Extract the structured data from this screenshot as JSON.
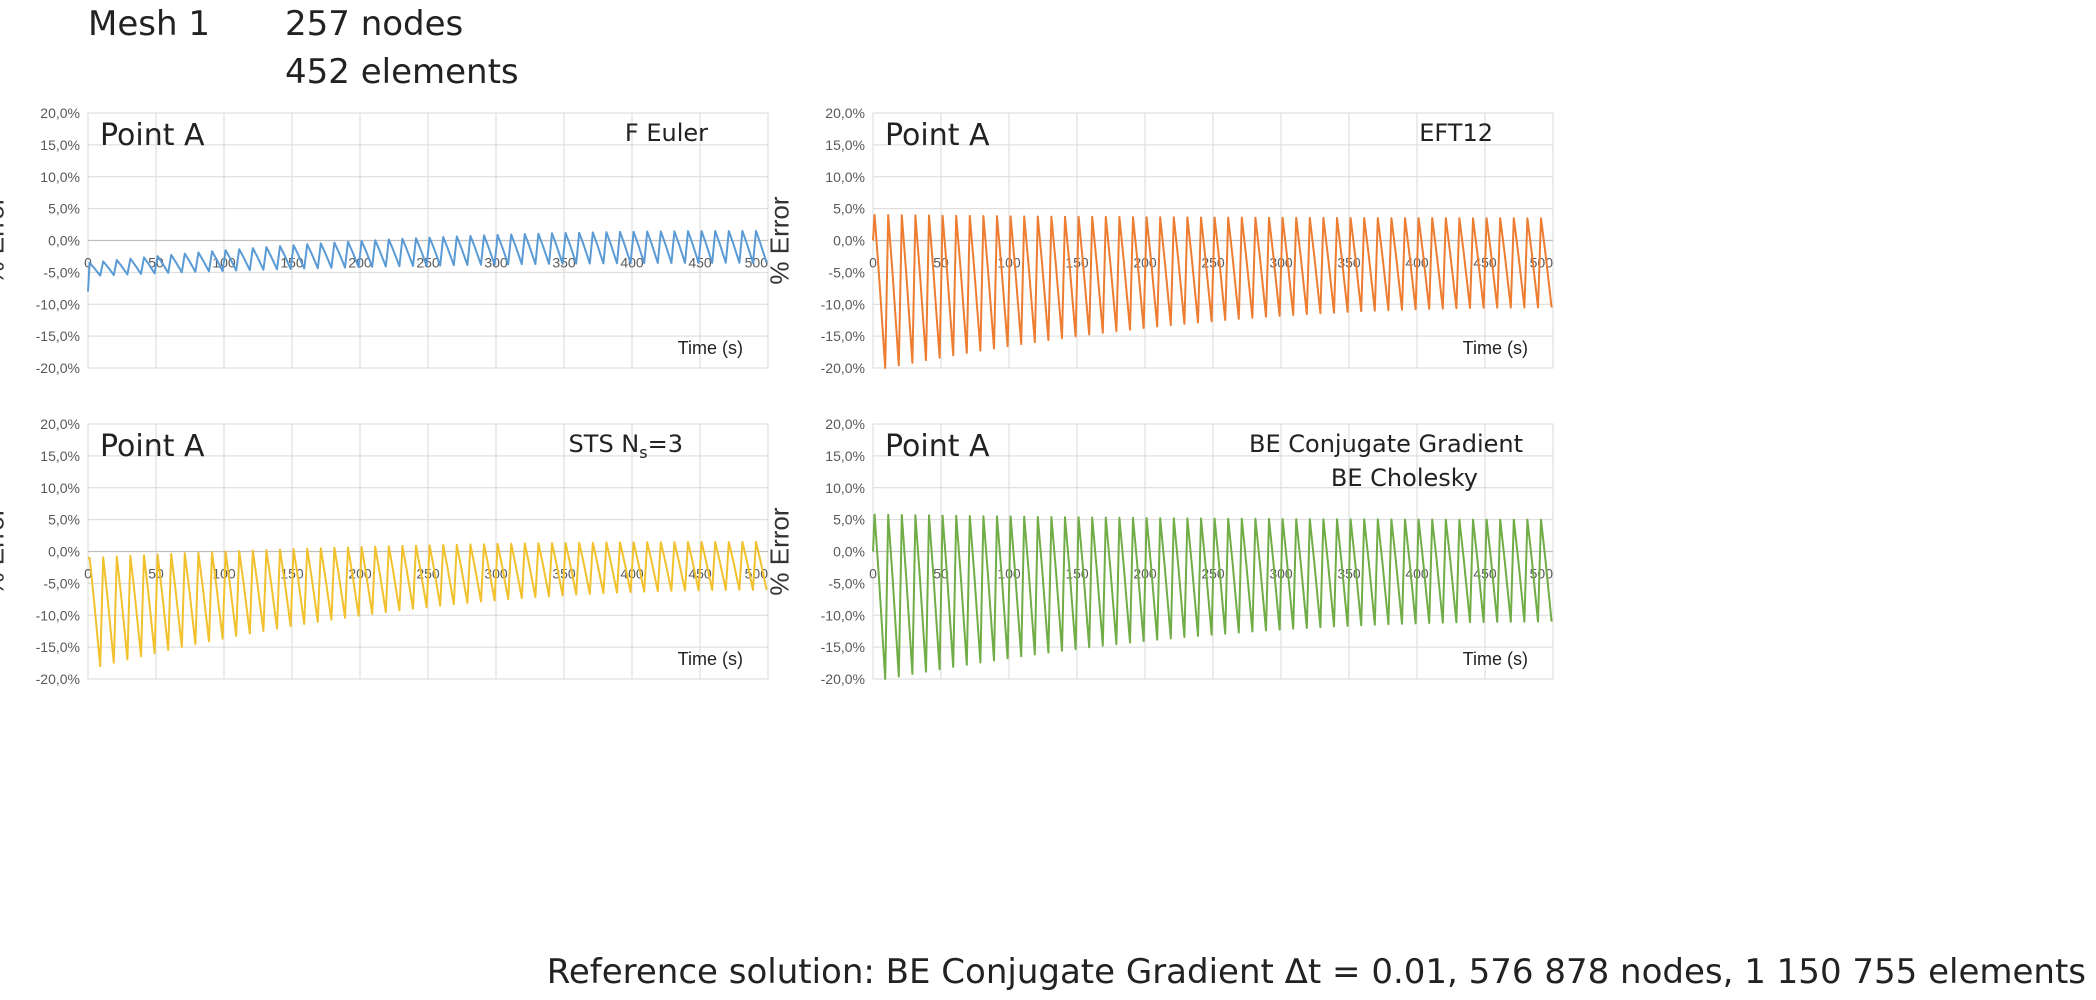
{
  "header": {
    "mesh": "Mesh 1",
    "nodes": "257 nodes",
    "elements": "452 elements"
  },
  "footer": {
    "reference": "Reference solution: BE Conjugate Gradient  Δt = 0.01,  576 878 nodes, 1 150 755 elements"
  },
  "chart_data": [
    {
      "type": "line",
      "point_label": "Point A",
      "method_label": "F Euler",
      "method_label_2": "",
      "xlabel": "Time (s)",
      "ylabel": "% Error",
      "xlim": [
        0,
        500
      ],
      "ylim": [
        -20,
        20
      ],
      "y_ticks": [
        "20,0%",
        "15,0%",
        "10,0%",
        "5,0%",
        "0,0%",
        "-5,0%",
        "-10,0%",
        "-15,0%",
        "-20,0%"
      ],
      "x_ticks": [
        "0",
        "50",
        "100",
        "150",
        "200",
        "250",
        "300",
        "350",
        "400",
        "450",
        "500"
      ],
      "grid": true,
      "color": "#5B9BD5",
      "series": [
        {
          "period": 10,
          "peak_start": -3.5,
          "peak_end": 1.5,
          "trough_start": -5.5,
          "trough_end": -3.5,
          "initial_value": -8.0
        }
      ]
    },
    {
      "type": "line",
      "point_label": "Point A",
      "method_label": "EFT12",
      "method_label_2": "",
      "xlabel": "Time (s)",
      "ylabel": "% Error",
      "xlim": [
        0,
        500
      ],
      "ylim": [
        -20,
        20
      ],
      "y_ticks": [
        "20,0%",
        "15,0%",
        "10,0%",
        "5,0%",
        "0,0%",
        "-5,0%",
        "-10,0%",
        "-15,0%",
        "-20,0%"
      ],
      "x_ticks": [
        "0",
        "50",
        "100",
        "150",
        "200",
        "250",
        "300",
        "350",
        "400",
        "450",
        "500"
      ],
      "grid": true,
      "color": "#ED7D31",
      "series": [
        {
          "period": 10,
          "peak_start": 4.0,
          "peak_end": 3.5,
          "trough_start": -20.0,
          "trough_end": -10.5,
          "initial_value": 0.0
        }
      ]
    },
    {
      "type": "line",
      "point_label": "Point A",
      "method_label": "STS N",
      "method_label_sub": "s",
      "method_label_tail": "=3",
      "method_label_2": "",
      "xlabel": "Time (s)",
      "ylabel": "% Error",
      "xlim": [
        0,
        500
      ],
      "ylim": [
        -20,
        20
      ],
      "y_ticks": [
        "20,0%",
        "15,0%",
        "10,0%",
        "5,0%",
        "0,0%",
        "-5,0%",
        "-10,0%",
        "-15,0%",
        "-20,0%"
      ],
      "x_ticks": [
        "0",
        "50",
        "100",
        "150",
        "200",
        "250",
        "300",
        "350",
        "400",
        "450",
        "500"
      ],
      "grid": true,
      "color": "#F2C12E",
      "series": [
        {
          "period": 10,
          "peak_start": -1.0,
          "peak_end": 1.5,
          "trough_start": -18.0,
          "trough_end": -6.0,
          "initial_value": -1.0
        }
      ]
    },
    {
      "type": "line",
      "point_label": "Point A",
      "method_label": "BE Conjugate Gradient",
      "method_label_2": "BE Cholesky",
      "xlabel": "Time (s)",
      "ylabel": "% Error",
      "xlim": [
        0,
        500
      ],
      "ylim": [
        -20,
        20
      ],
      "y_ticks": [
        "20,0%",
        "15,0%",
        "10,0%",
        "5,0%",
        "0,0%",
        "-5,0%",
        "-10,0%",
        "-15,0%",
        "-20,0%"
      ],
      "x_ticks": [
        "0",
        "50",
        "100",
        "150",
        "200",
        "250",
        "300",
        "350",
        "400",
        "450",
        "500"
      ],
      "grid": true,
      "color": "#70AD47",
      "series": [
        {
          "period": 10,
          "peak_start": 5.8,
          "peak_end": 5.0,
          "trough_start": -20.0,
          "trough_end": -11.0,
          "initial_value": 0.0
        }
      ]
    }
  ]
}
